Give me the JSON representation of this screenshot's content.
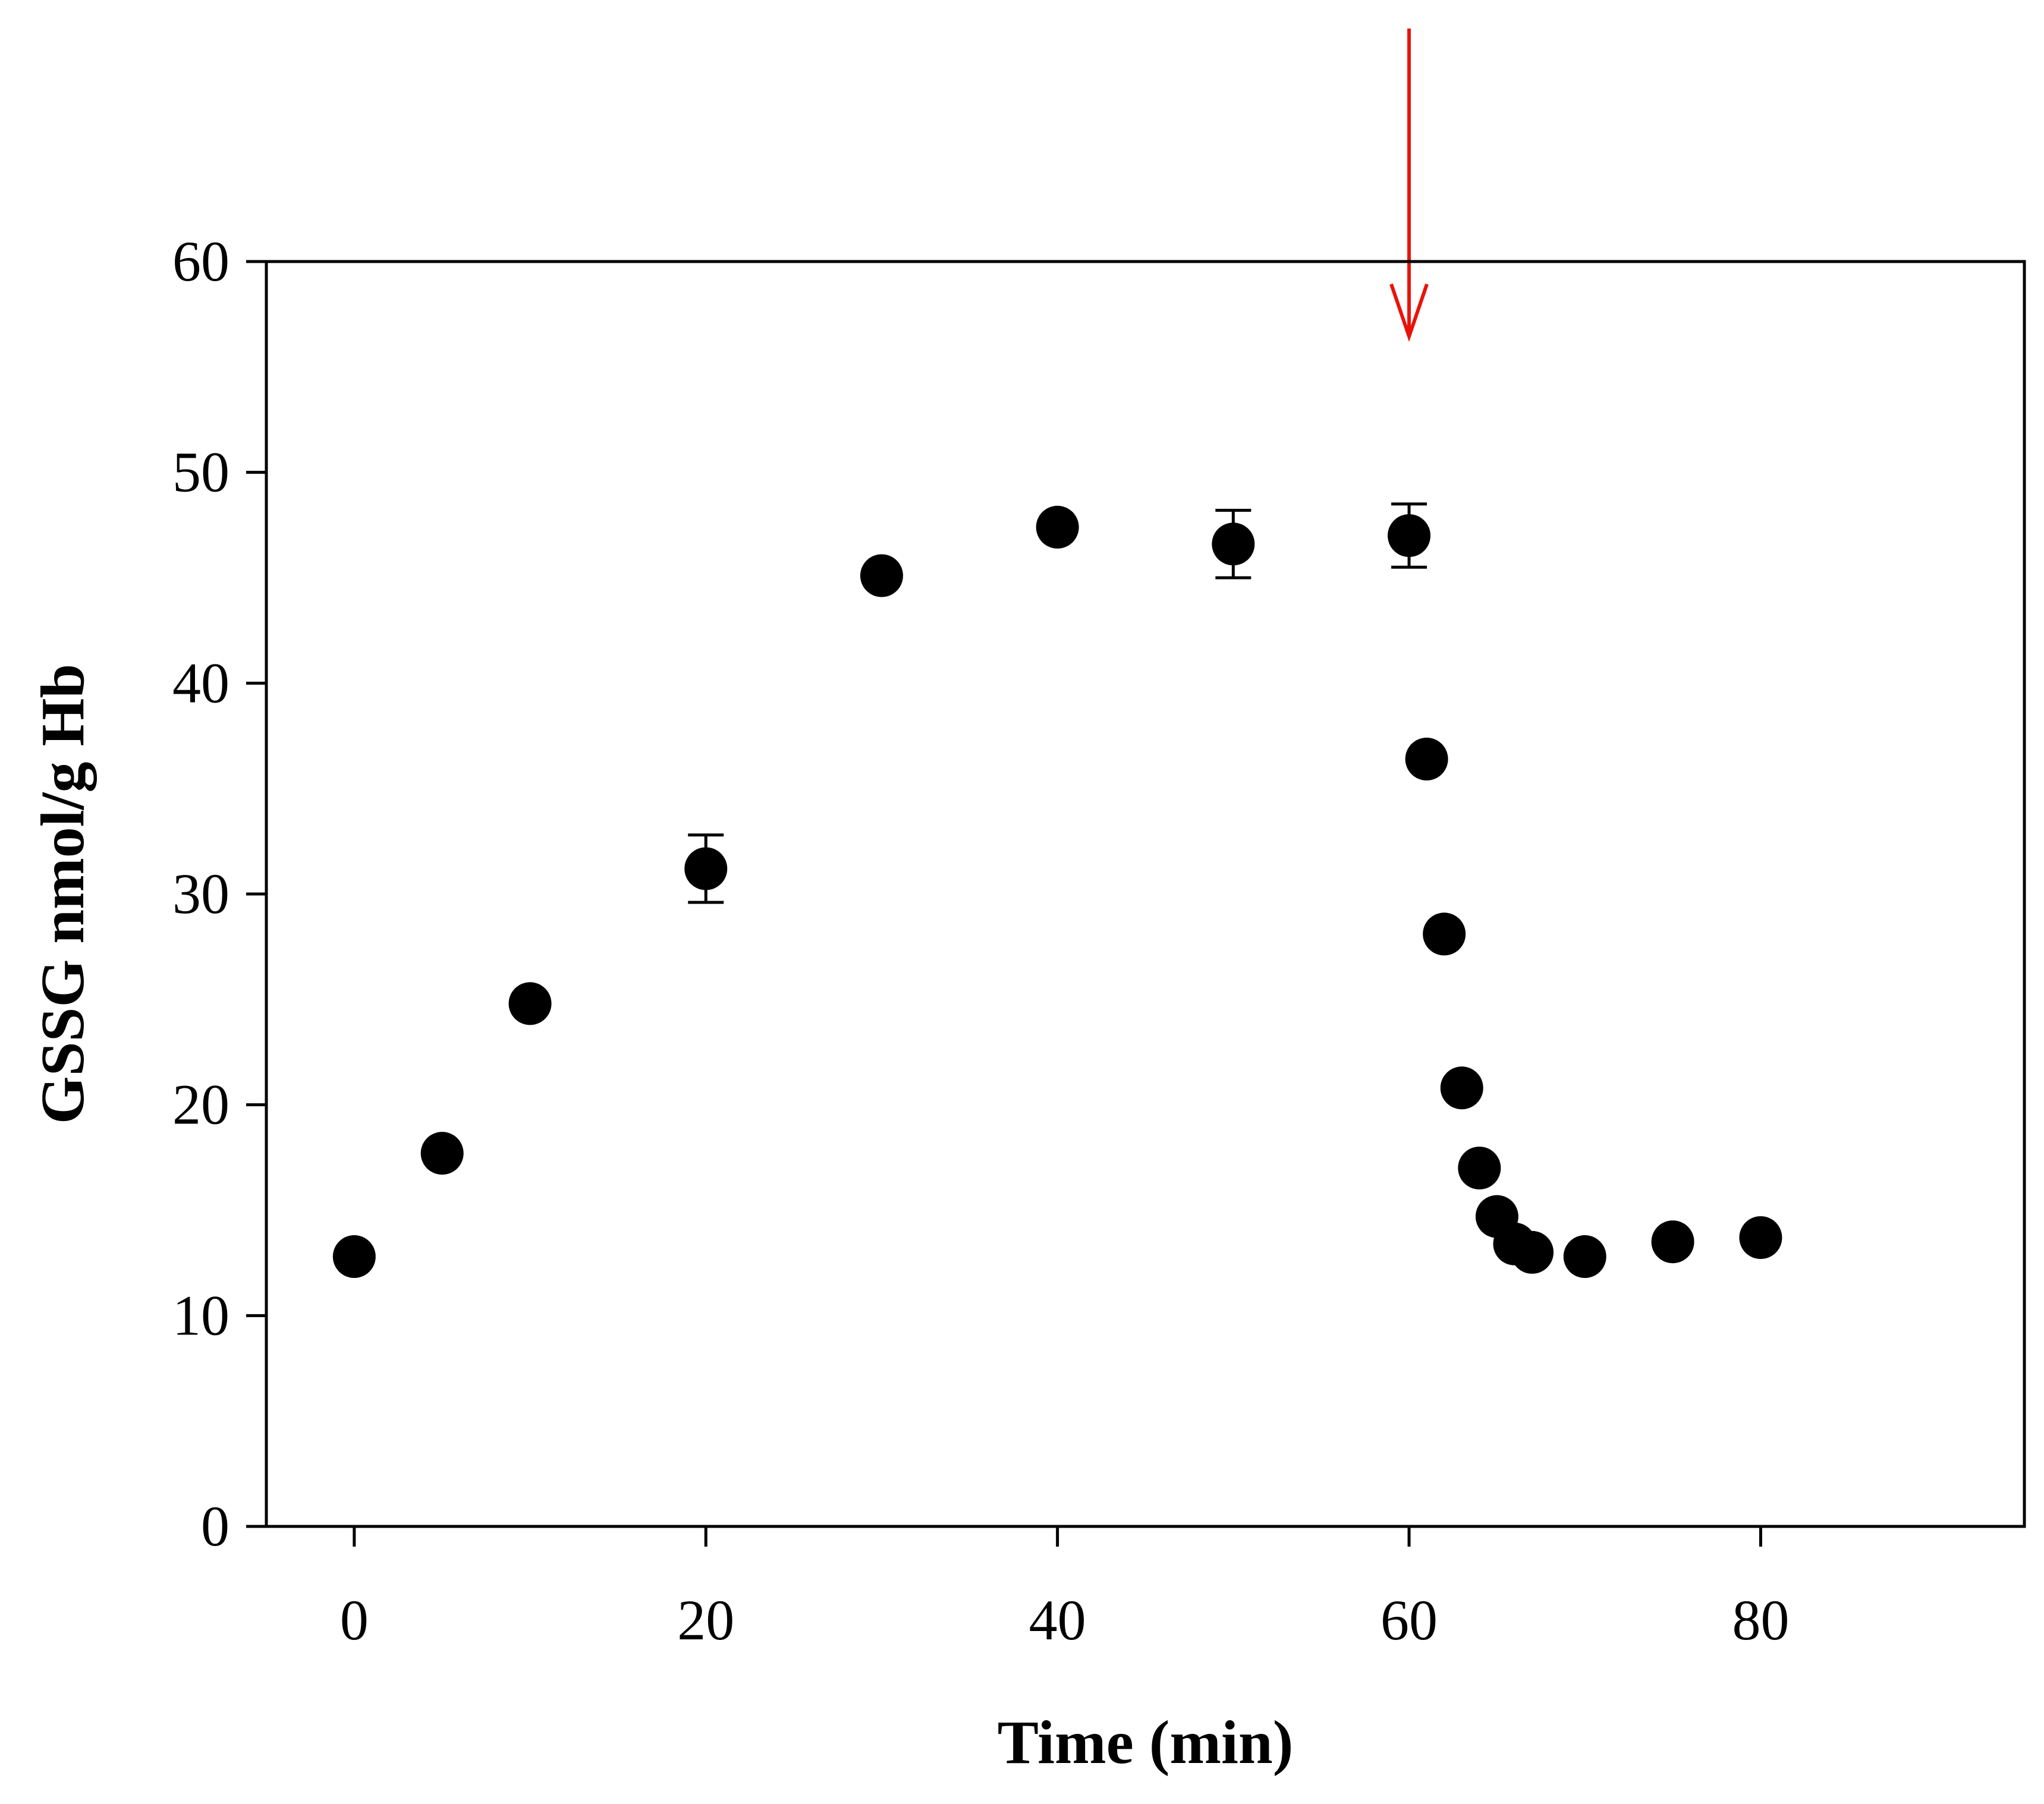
{
  "chart_data": {
    "type": "scatter",
    "title": "",
    "xlabel": "Time (min)",
    "ylabel": "GSSG nmol/g Hb",
    "xlim": [
      -5,
      95
    ],
    "ylim": [
      0,
      60
    ],
    "xticks": [
      0,
      20,
      40,
      60,
      80
    ],
    "yticks": [
      0,
      10,
      20,
      30,
      40,
      50,
      60
    ],
    "grid": false,
    "legend": "none",
    "series": [
      {
        "marker": "filled-circle",
        "color": "#000000",
        "points": [
          {
            "x": 0,
            "y": 12.8,
            "err": 0
          },
          {
            "x": 5,
            "y": 17.7,
            "err": 0
          },
          {
            "x": 10,
            "y": 24.8,
            "err": 0
          },
          {
            "x": 20,
            "y": 31.2,
            "err": 1.6
          },
          {
            "x": 30,
            "y": 45.1,
            "err": 0
          },
          {
            "x": 40,
            "y": 47.4,
            "err": 0
          },
          {
            "x": 50,
            "y": 46.6,
            "err": 1.6
          },
          {
            "x": 60,
            "y": 47.0,
            "err": 1.5
          },
          {
            "x": 61,
            "y": 36.4,
            "err": 0
          },
          {
            "x": 62,
            "y": 28.1,
            "err": 0
          },
          {
            "x": 63,
            "y": 20.8,
            "err": 0
          },
          {
            "x": 64,
            "y": 17.0,
            "err": 0
          },
          {
            "x": 65,
            "y": 14.7,
            "err": 0
          },
          {
            "x": 66,
            "y": 13.4,
            "err": 0
          },
          {
            "x": 67,
            "y": 13.0,
            "err": 0
          },
          {
            "x": 70,
            "y": 12.8,
            "err": 0
          },
          {
            "x": 75,
            "y": 13.5,
            "err": 0
          },
          {
            "x": 80,
            "y": 13.7,
            "err": 0
          }
        ]
      }
    ],
    "annotations": [
      {
        "type": "arrow",
        "direction": "down",
        "x": 60,
        "color": "#e8140c"
      }
    ]
  }
}
